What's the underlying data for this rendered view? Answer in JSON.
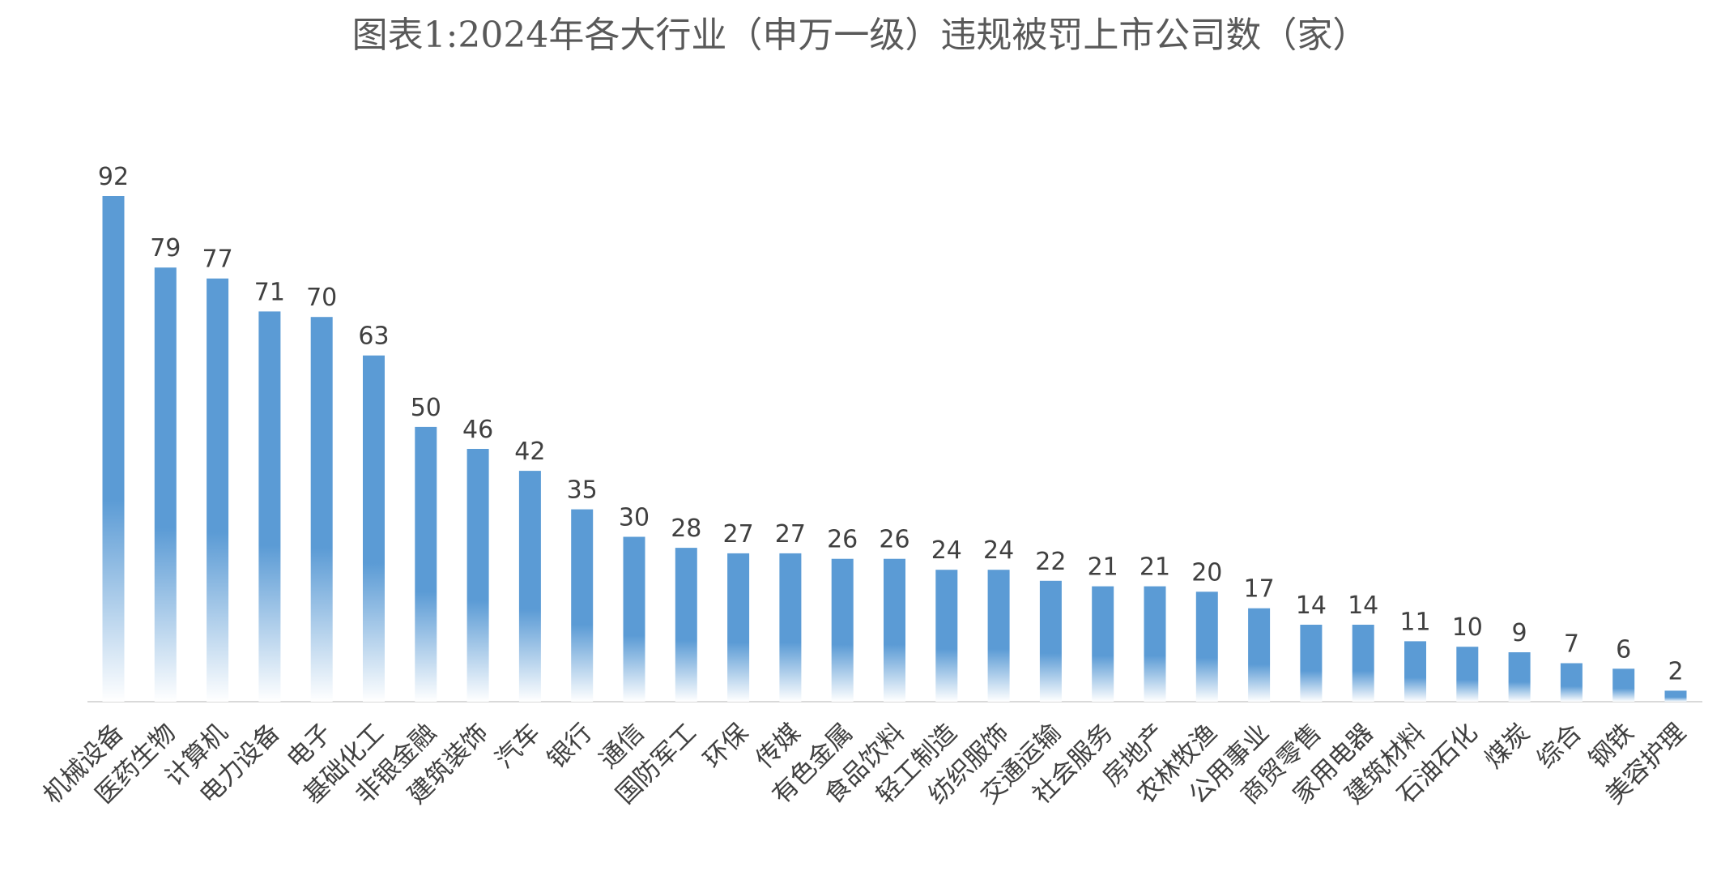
{
  "chart_data": {
    "type": "bar",
    "title": "图表1:2024年各大行业（申万一级）违规被罚上市公司数（家）",
    "xlabel": "",
    "ylabel": "",
    "ylim": [
      0,
      92
    ],
    "grid": false,
    "legend": "none",
    "bar_color_top": "#5B9BD5",
    "bar_color_bottom": "#ffffff",
    "categories": [
      "机械设备",
      "医药生物",
      "计算机",
      "电力设备",
      "电子",
      "基础化工",
      "非银金融",
      "建筑装饰",
      "汽车",
      "银行",
      "通信",
      "国防军工",
      "环保",
      "传媒",
      "有色金属",
      "食品饮料",
      "轻工制造",
      "纺织服饰",
      "交通运输",
      "社会服务",
      "房地产",
      "农林牧渔",
      "公用事业",
      "商贸零售",
      "家用电器",
      "建筑材料",
      "石油石化",
      "煤炭",
      "综合",
      "钢铁",
      "美容护理"
    ],
    "values": [
      92,
      79,
      77,
      71,
      70,
      63,
      50,
      46,
      42,
      35,
      30,
      28,
      27,
      27,
      26,
      26,
      24,
      24,
      22,
      21,
      21,
      20,
      17,
      14,
      14,
      11,
      10,
      9,
      7,
      6,
      2
    ]
  }
}
